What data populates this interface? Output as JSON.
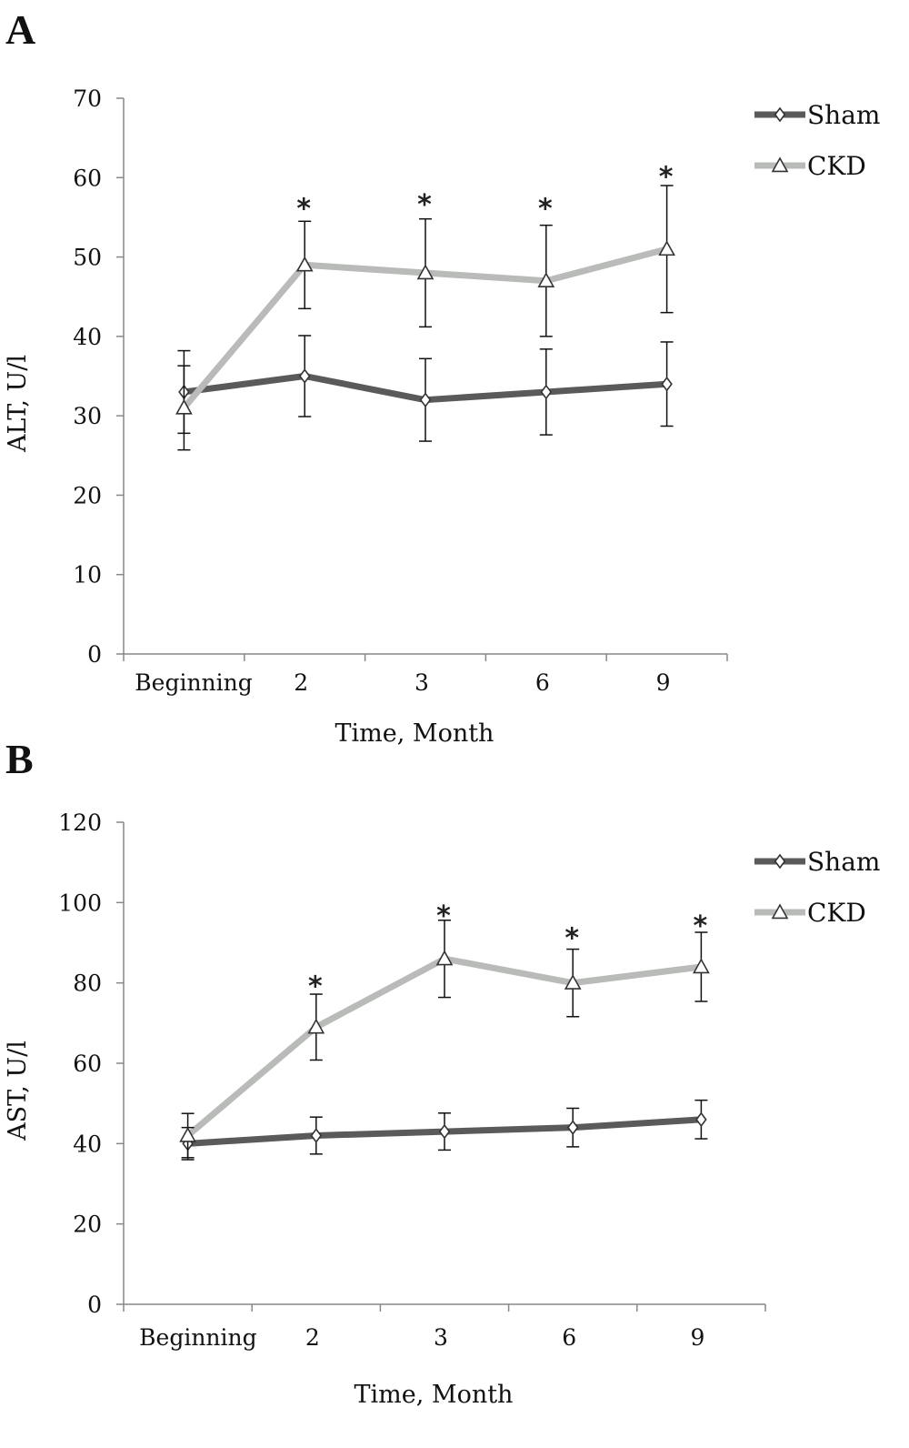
{
  "colors": {
    "sham": "#5a5a5a",
    "ckd": "#b8bbb8",
    "axis": "#888888",
    "error": "#111111"
  },
  "chart_data": [
    {
      "type": "line",
      "panel_label": "A",
      "xlabel": "Time, Month",
      "ylabel": "ALT, U/l",
      "categories": [
        "Beginning",
        "2",
        "3",
        "6",
        "9"
      ],
      "ylim": [
        0,
        70
      ],
      "yticks": [
        0,
        10,
        20,
        30,
        40,
        50,
        60,
        70
      ],
      "legend": "top-right",
      "series": [
        {
          "name": "Sham",
          "marker": "diamond",
          "values": [
            33,
            35,
            32,
            33,
            34
          ],
          "errors": [
            5.2,
            5.1,
            5.2,
            5.4,
            5.3
          ]
        },
        {
          "name": "CKD",
          "marker": "triangle",
          "values": [
            31,
            49,
            48,
            47,
            51
          ],
          "errors": [
            5.3,
            5.5,
            6.8,
            7.0,
            8.0
          ]
        }
      ],
      "annotations": [
        {
          "text": "*",
          "category": "2",
          "y": 57
        },
        {
          "text": "*",
          "category": "3",
          "y": 57.5
        },
        {
          "text": "*",
          "category": "6",
          "y": 57
        },
        {
          "text": "*",
          "category": "9",
          "y": 61
        }
      ]
    },
    {
      "type": "line",
      "panel_label": "B",
      "xlabel": "Time, Month",
      "ylabel": "AST, U/l",
      "categories": [
        "Beginning",
        "2",
        "3",
        "6",
        "9"
      ],
      "ylim": [
        0,
        120
      ],
      "yticks": [
        0,
        20,
        40,
        60,
        80,
        100,
        120
      ],
      "legend": "top-right",
      "series": [
        {
          "name": "Sham",
          "marker": "diamond",
          "values": [
            40,
            42,
            43,
            44,
            46
          ],
          "errors": [
            4.0,
            4.6,
            4.6,
            4.8,
            4.8
          ]
        },
        {
          "name": "CKD",
          "marker": "triangle",
          "values": [
            42,
            69,
            86,
            80,
            84
          ],
          "errors": [
            5.5,
            8.2,
            9.6,
            8.4,
            8.6
          ]
        }
      ],
      "annotations": [
        {
          "text": "*",
          "category": "2",
          "y": 81
        },
        {
          "text": "*",
          "category": "3",
          "y": 98.5
        },
        {
          "text": "*",
          "category": "6",
          "y": 93
        },
        {
          "text": "*",
          "category": "9",
          "y": 96
        }
      ]
    }
  ]
}
